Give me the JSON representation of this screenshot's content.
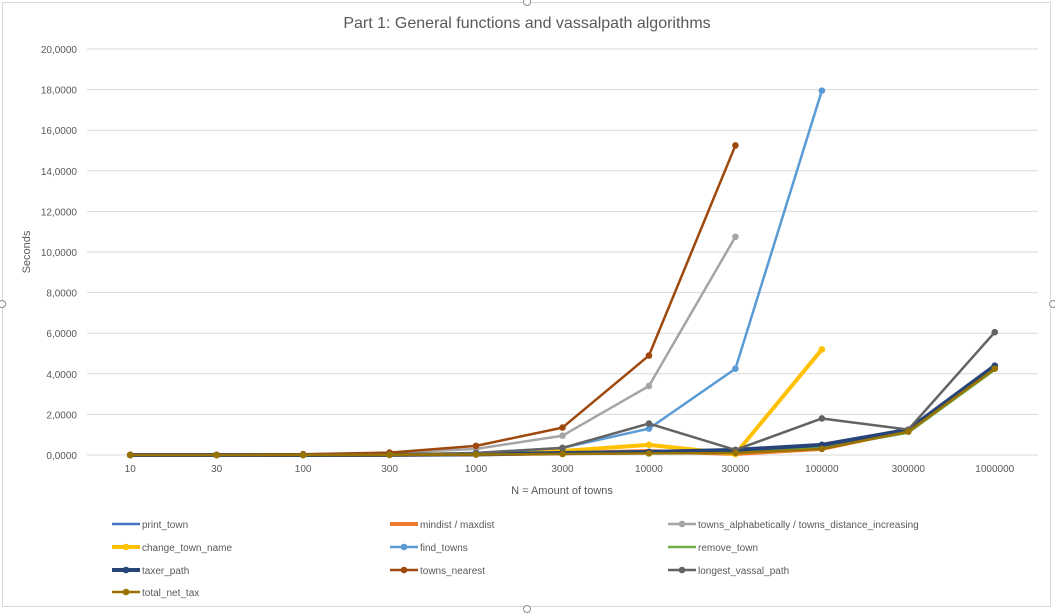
{
  "chart_data": {
    "type": "line",
    "title": "Part 1: General functions and vassalpath algorithms",
    "xlabel": "N = Amount of towns",
    "ylabel": "Seconds",
    "categories": [
      "10",
      "30",
      "100",
      "300",
      "1000",
      "3000",
      "10000",
      "30000",
      "100000",
      "300000",
      "1000000"
    ],
    "y_ticks": [
      "0,0000",
      "2,0000",
      "4,0000",
      "6,0000",
      "8,0000",
      "10,0000",
      "12,0000",
      "14,0000",
      "16,0000",
      "18,0000",
      "20,0000"
    ],
    "ylim": [
      0,
      20
    ],
    "grid": "horizontal",
    "legend_position": "bottom",
    "series": [
      {
        "name": "print_town",
        "color": "#4472c4",
        "marker": false,
        "width": 2.5,
        "values": [
          0,
          0,
          0,
          0.01,
          0.03,
          0.1,
          0.15,
          0.2,
          0.4,
          1.2,
          4.3
        ]
      },
      {
        "name": "mindist / maxdist",
        "color": "#ed7d31",
        "marker": false,
        "width": 4,
        "values": [
          0,
          0,
          0,
          0.01,
          0.03,
          0.08,
          0.2,
          0.05,
          0.3,
          1.2,
          4.35
        ]
      },
      {
        "name": "towns_alphabetically / towns_distance_increasing",
        "color": "#a5a5a5",
        "marker": true,
        "width": 2.5,
        "values": [
          0.01,
          0.01,
          0.03,
          0.1,
          0.3,
          0.95,
          3.4,
          10.75,
          null,
          null,
          null
        ]
      },
      {
        "name": "change_town_name",
        "color": "#ffc000",
        "marker": true,
        "width": 4,
        "values": [
          0,
          0,
          0,
          0.01,
          0.05,
          0.2,
          0.5,
          0.05,
          5.2,
          null,
          null
        ]
      },
      {
        "name": "find_towns",
        "color": "#5b9bd5",
        "marker": true,
        "width": 2.5,
        "values": [
          0,
          0,
          0.01,
          0.02,
          0.1,
          0.35,
          1.3,
          4.25,
          17.95,
          null,
          null
        ]
      },
      {
        "name": "remove_town",
        "color": "#70ad47",
        "marker": false,
        "width": 2.5,
        "values": [
          0,
          0,
          0,
          0.01,
          0.03,
          0.07,
          0.12,
          0.15,
          0.35,
          1.1,
          4.2
        ]
      },
      {
        "name": "taxer_path",
        "color": "#264478",
        "marker": true,
        "width": 4,
        "values": [
          0,
          0,
          0,
          0.01,
          0.03,
          0.1,
          0.15,
          0.25,
          0.5,
          1.25,
          4.4
        ]
      },
      {
        "name": "towns_nearest",
        "color": "#9e480e",
        "marker": true,
        "width": 2.5,
        "values": [
          0.01,
          0.01,
          0.04,
          0.12,
          0.45,
          1.35,
          4.9,
          15.25,
          null,
          null,
          null
        ]
      },
      {
        "name": "longest_vassal_path",
        "color": "#636363",
        "marker": true,
        "width": 2.5,
        "values": [
          0,
          0,
          0.01,
          0.02,
          0.1,
          0.35,
          1.55,
          0.25,
          1.8,
          1.25,
          6.05
        ]
      },
      {
        "name": "total_net_tax",
        "color": "#997300",
        "marker": true,
        "width": 2.5,
        "values": [
          0,
          0,
          0,
          0.01,
          0.02,
          0.05,
          0.08,
          0.1,
          0.3,
          1.15,
          4.25
        ]
      }
    ]
  }
}
